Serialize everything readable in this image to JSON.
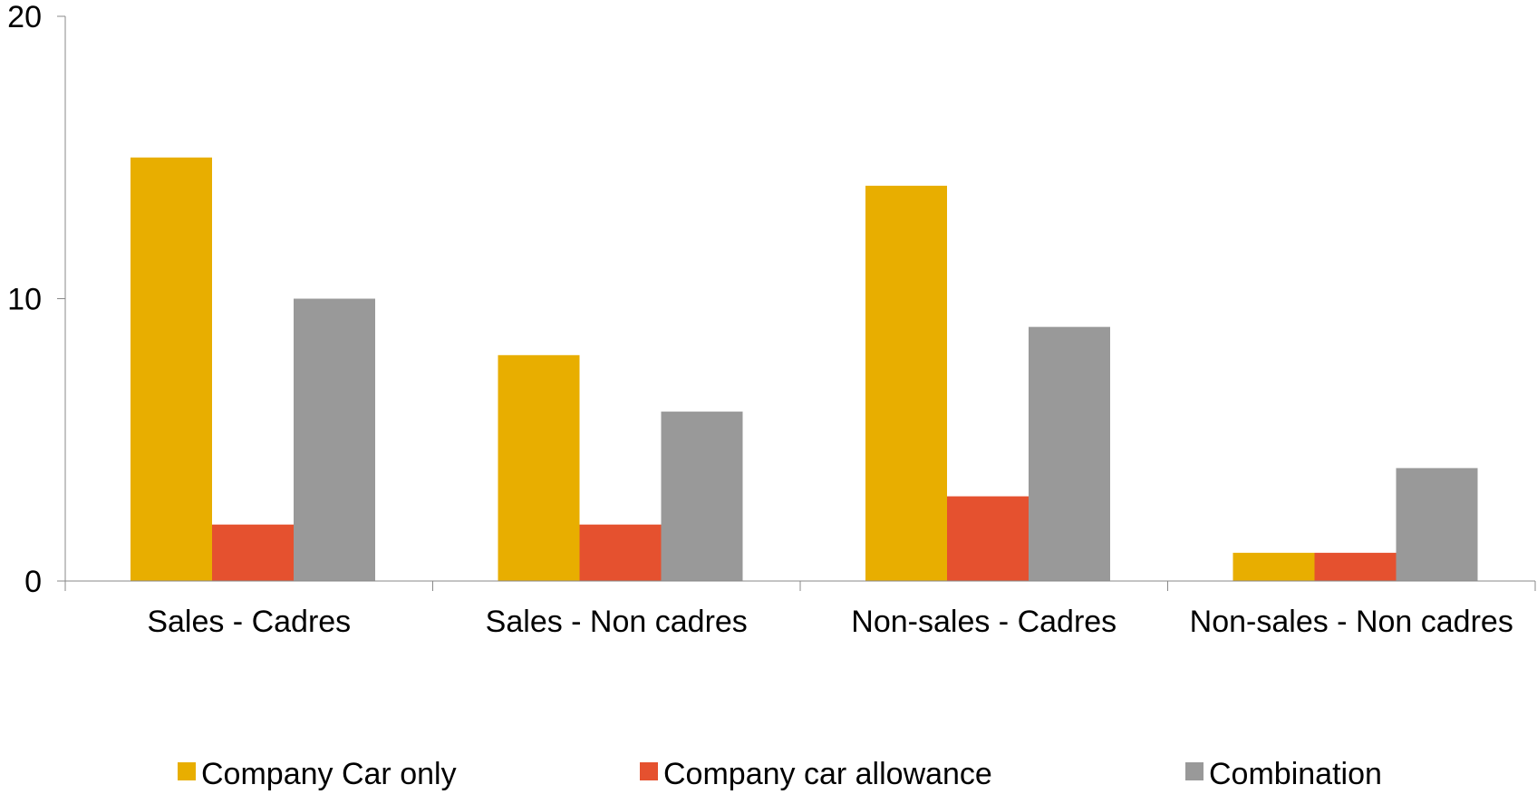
{
  "chart_data": {
    "type": "bar",
    "title": "",
    "xlabel": "",
    "ylabel": "",
    "categories": [
      "Sales - Cadres",
      "Sales - Non cadres",
      "Non-sales - Cadres",
      "Non-sales - Non cadres"
    ],
    "series": [
      {
        "name": "Company Car only",
        "color": "#E8AE00",
        "values": [
          15,
          8,
          14,
          1
        ]
      },
      {
        "name": "Company car allowance",
        "color": "#E5512F",
        "values": [
          2,
          2,
          3,
          1
        ]
      },
      {
        "name": "Combination",
        "color": "#999999",
        "values": [
          10,
          6,
          9,
          4
        ]
      }
    ],
    "ylim": [
      0,
      20
    ],
    "yticks": [
      0,
      10,
      20
    ],
    "grid": false,
    "legend_position": "bottom"
  }
}
